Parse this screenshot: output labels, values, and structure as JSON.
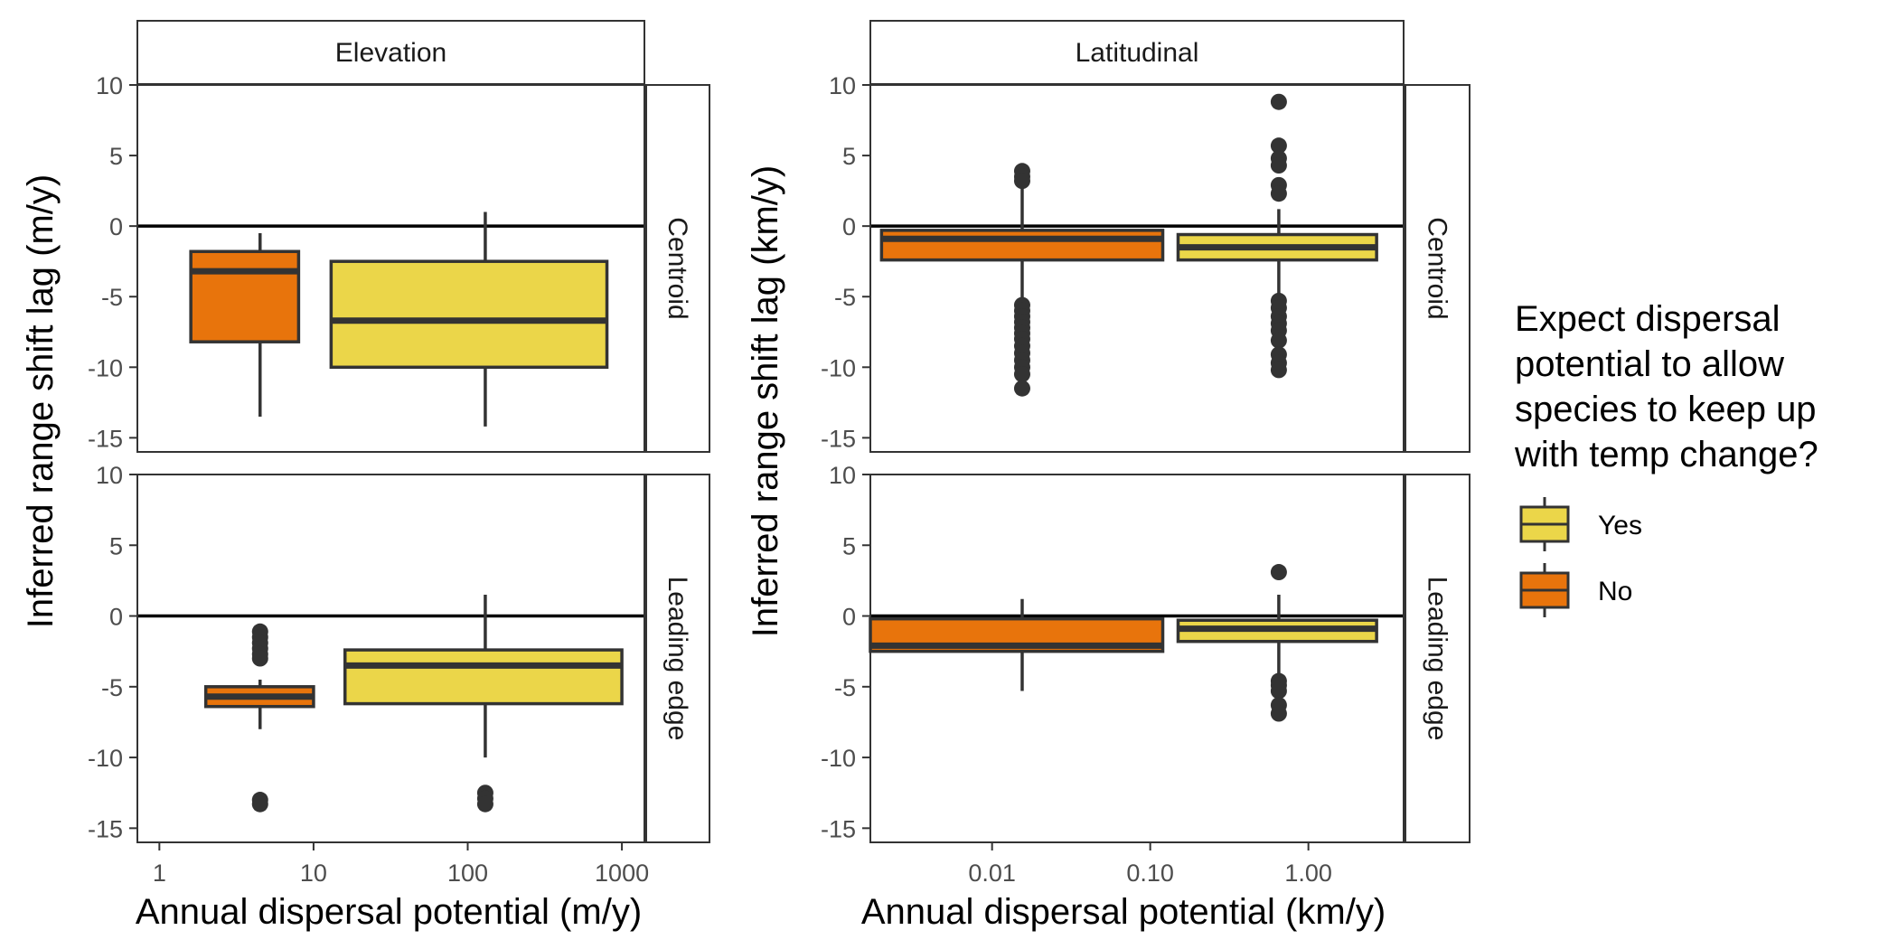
{
  "legend": {
    "title_lines": [
      "Expect dispersal",
      "potential to allow",
      "species to keep up",
      "with temp change?"
    ],
    "items": [
      {
        "label": "Yes",
        "color": "#EBD649"
      },
      {
        "label": "No",
        "color": "#E8740C"
      }
    ]
  },
  "chart_data": {
    "type": "boxplot",
    "facet_rows": [
      "Centroid",
      "Leading edge"
    ],
    "ylabel": "Inferred range shift lag",
    "ylim": [
      -16,
      10
    ],
    "yticks": [
      10,
      5,
      0,
      -5,
      -10,
      -15
    ],
    "hline": 0,
    "colors": {
      "No": "#E8740C",
      "Yes": "#EBD649",
      "outline": "#333333"
    },
    "panels": [
      {
        "column": "Elevation",
        "ylabel_unit": "Inferred range shift lag (m/y)",
        "xlabel": "Annual dispersal potential (m/y)",
        "x_scale": "log10",
        "xlim": [
          0.72,
          1400
        ],
        "xticks": [
          {
            "value": 1,
            "label": "1"
          },
          {
            "value": 10,
            "label": "10"
          },
          {
            "value": 100,
            "label": "100"
          },
          {
            "value": 1000,
            "label": "1000"
          }
        ],
        "rows": {
          "Centroid": [
            {
              "group": "No",
              "x_from": 1.6,
              "x_to": 8,
              "x_center": 4.5,
              "whisker_low": -13.5,
              "q1": -8.2,
              "median": -3.2,
              "q3": -1.8,
              "whisker_high": -0.5,
              "outliers": []
            },
            {
              "group": "Yes",
              "x_from": 13,
              "x_to": 800,
              "x_center": 130,
              "whisker_low": -14.2,
              "q1": -10,
              "median": -6.7,
              "q3": -2.5,
              "whisker_high": 1,
              "outliers": []
            }
          ],
          "Leading edge": [
            {
              "group": "No",
              "x_from": 2,
              "x_to": 10,
              "x_center": 4.5,
              "whisker_low": -8,
              "q1": -6.4,
              "median": -5.7,
              "q3": -5,
              "whisker_high": -4.5,
              "outliers": [
                -1.1,
                -1.5,
                -1.9,
                -2.3,
                -2.7,
                -3,
                -13,
                -13.3
              ]
            },
            {
              "group": "Yes",
              "x_from": 16,
              "x_to": 1000,
              "x_center": 130,
              "whisker_low": -10,
              "q1": -6.2,
              "median": -3.5,
              "q3": -2.4,
              "whisker_high": 1.5,
              "outliers": [
                -12.5,
                -12.9,
                -13.3
              ]
            }
          ]
        }
      },
      {
        "column": "Latitudinal",
        "ylabel_unit": "Inferred range shift lag (km/y)",
        "xlabel": "Annual dispersal potential (km/y)",
        "x_scale": "log10",
        "xlim": [
          0.0017,
          4
        ],
        "xticks": [
          {
            "value": 0.01,
            "label": "0.01"
          },
          {
            "value": 0.1,
            "label": "0.10"
          },
          {
            "value": 1,
            "label": "1.00"
          }
        ],
        "rows": {
          "Centroid": [
            {
              "group": "No",
              "x_from": 0.002,
              "x_to": 0.12,
              "x_center": 0.0155,
              "whisker_low": -5.3,
              "q1": -2.4,
              "median": -0.9,
              "q3": -0.3,
              "whisker_high": 3,
              "outliers": [
                3.9,
                3.5,
                3.2,
                -5.6,
                -6,
                -6.4,
                -6.8,
                -7.2,
                -7.6,
                -8,
                -8.5,
                -9,
                -9.5,
                -10,
                -10.5,
                -11.5
              ]
            },
            {
              "group": "Yes",
              "x_from": 0.15,
              "x_to": 2.7,
              "x_center": 0.65,
              "whisker_low": -4.8,
              "q1": -2.4,
              "median": -1.5,
              "q3": -0.6,
              "whisker_high": 1.2,
              "outliers": [
                8.8,
                5.7,
                4.8,
                4.3,
                2.9,
                2.3,
                -5.3,
                -5.8,
                -6.4,
                -6.9,
                -7.4,
                -8.1,
                -9.1,
                -9.7,
                -10.2
              ]
            }
          ],
          "Leading edge": [
            {
              "group": "No",
              "x_from": 0.0017,
              "x_to": 0.12,
              "x_center": 0.0155,
              "whisker_low": -5.3,
              "q1": -2.5,
              "median": -2.1,
              "q3": -0.2,
              "whisker_high": 1.2,
              "outliers": []
            },
            {
              "group": "Yes",
              "x_from": 0.15,
              "x_to": 2.7,
              "x_center": 0.65,
              "whisker_low": -4.3,
              "q1": -1.8,
              "median": -0.9,
              "q3": -0.3,
              "whisker_high": 1.5,
              "outliers": [
                3.1,
                -4.6,
                -4.9,
                -5.3,
                -6.3,
                -6.9
              ]
            }
          ]
        }
      }
    ]
  }
}
